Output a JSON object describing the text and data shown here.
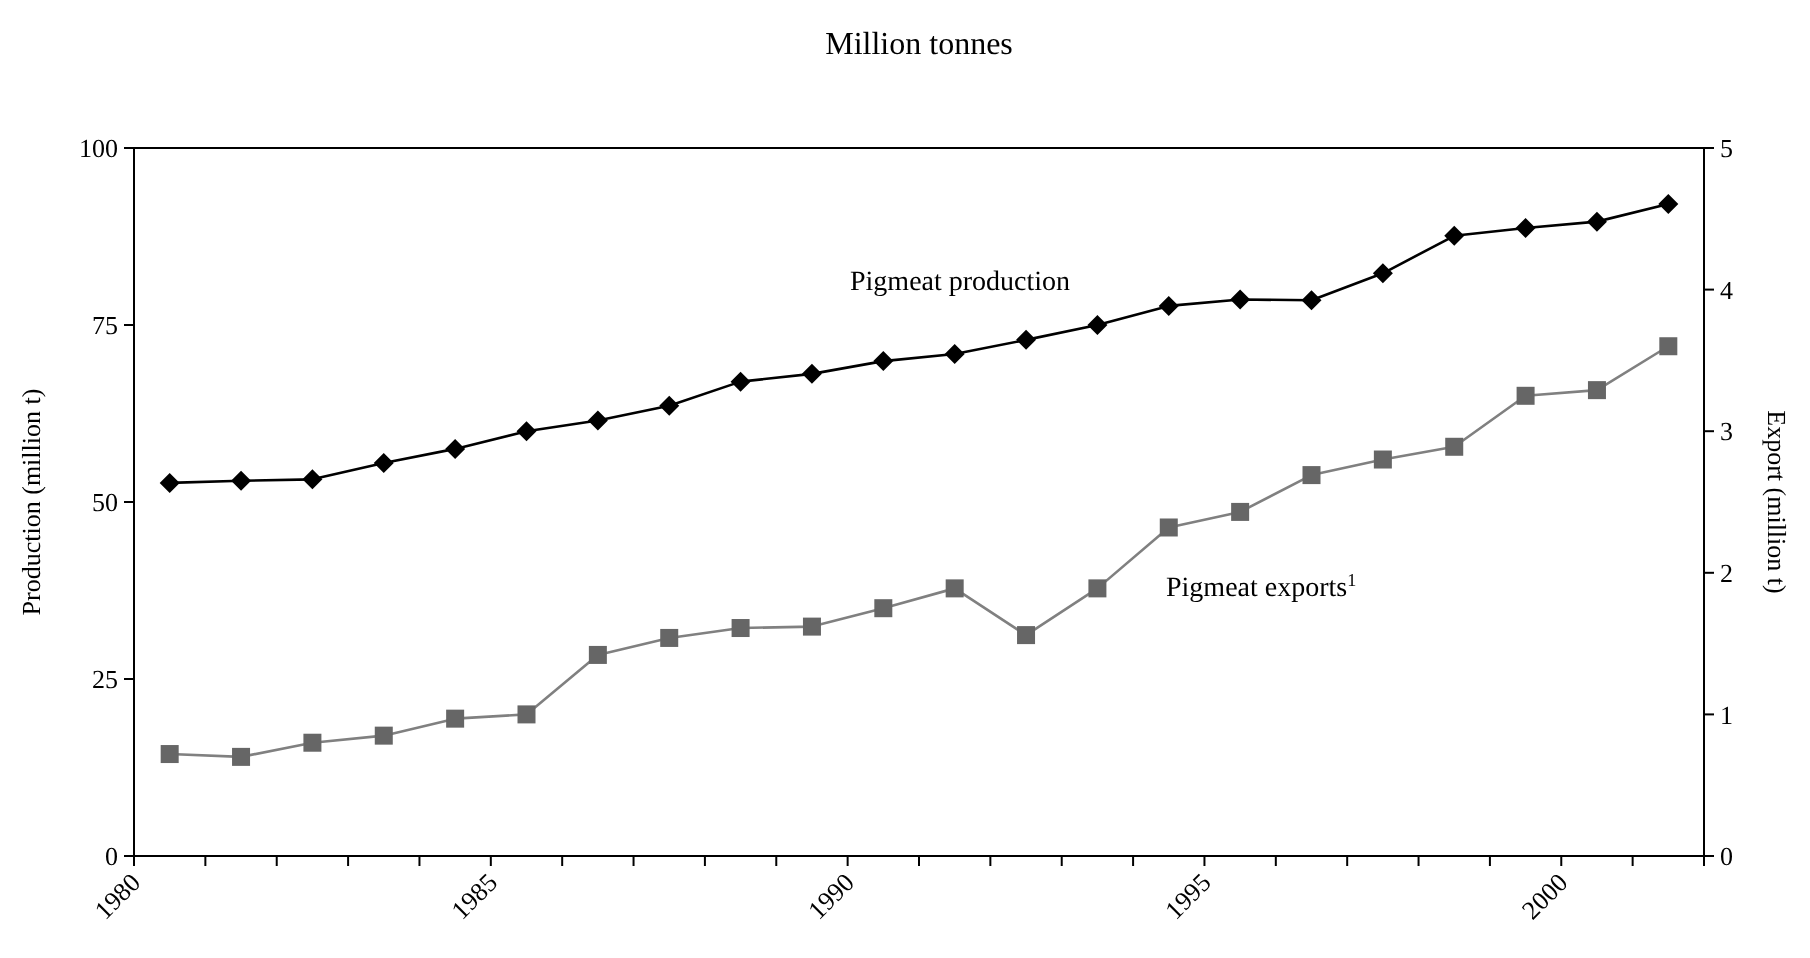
{
  "chart_data": {
    "type": "line",
    "title": "Million tonnes",
    "ylabel": "Production (million t)",
    "y2label": "Export (million t)",
    "x": [
      1980.5,
      1981.5,
      1982.5,
      1983.5,
      1984.5,
      1985.5,
      1986.5,
      1987.5,
      1988.5,
      1989.5,
      1990.5,
      1991.5,
      1992.5,
      1993.5,
      1994.5,
      1995.5,
      1996.5,
      1997.5,
      1998.5,
      1999.5,
      2000.5,
      2001.5
    ],
    "xlim": [
      1980,
      2002
    ],
    "xticks": [
      1980,
      {
        "value": 1981,
        "label": null
      },
      {
        "value": 1982,
        "label": null
      },
      {
        "value": 1983,
        "label": null
      },
      {
        "value": 1984,
        "label": null
      },
      1985,
      {
        "value": 1986,
        "label": null
      },
      {
        "value": 1987,
        "label": null
      },
      {
        "value": 1988,
        "label": null
      },
      {
        "value": 1989,
        "label": null
      },
      1990,
      {
        "value": 1991,
        "label": null
      },
      {
        "value": 1992,
        "label": null
      },
      {
        "value": 1993,
        "label": null
      },
      {
        "value": 1994,
        "label": null
      },
      1995,
      {
        "value": 1996,
        "label": null
      },
      {
        "value": 1997,
        "label": null
      },
      {
        "value": 1998,
        "label": null
      },
      {
        "value": 1999,
        "label": null
      },
      2000,
      {
        "value": 2001,
        "label": null
      },
      {
        "value": 2002,
        "label": null
      }
    ],
    "ylim": [
      0,
      100
    ],
    "yticks": [
      0,
      25,
      50,
      75,
      100
    ],
    "y2lim": [
      0,
      5
    ],
    "y2ticks": [
      0,
      1,
      2,
      3,
      4,
      5
    ],
    "grid": false,
    "line_style": "solid",
    "series": [
      {
        "name": "Pigmeat production",
        "color": "#000000",
        "marker": "diamond",
        "values": [
          52.7,
          53,
          53.2,
          55.5,
          57.5,
          60,
          61.5,
          63.6,
          67,
          68.1,
          69.9,
          70.9,
          72.9,
          75,
          77.7,
          78.6,
          78.5,
          82.3,
          87.6,
          88.7,
          89.6,
          92.1
        ]
      },
      {
        "name": "Pigmeat exports$^{1}$",
        "color": "#666666",
        "marker": "square",
        "axis": "y2",
        "values": [
          0.72,
          0.7,
          0.8,
          0.85,
          0.97,
          1.0,
          1.42,
          1.54,
          1.61,
          1.62,
          1.75,
          1.89,
          1.56,
          1.89,
          2.32,
          2.43,
          2.69,
          2.8,
          2.89,
          3.25,
          3.29,
          3.6
        ]
      }
    ]
  }
}
